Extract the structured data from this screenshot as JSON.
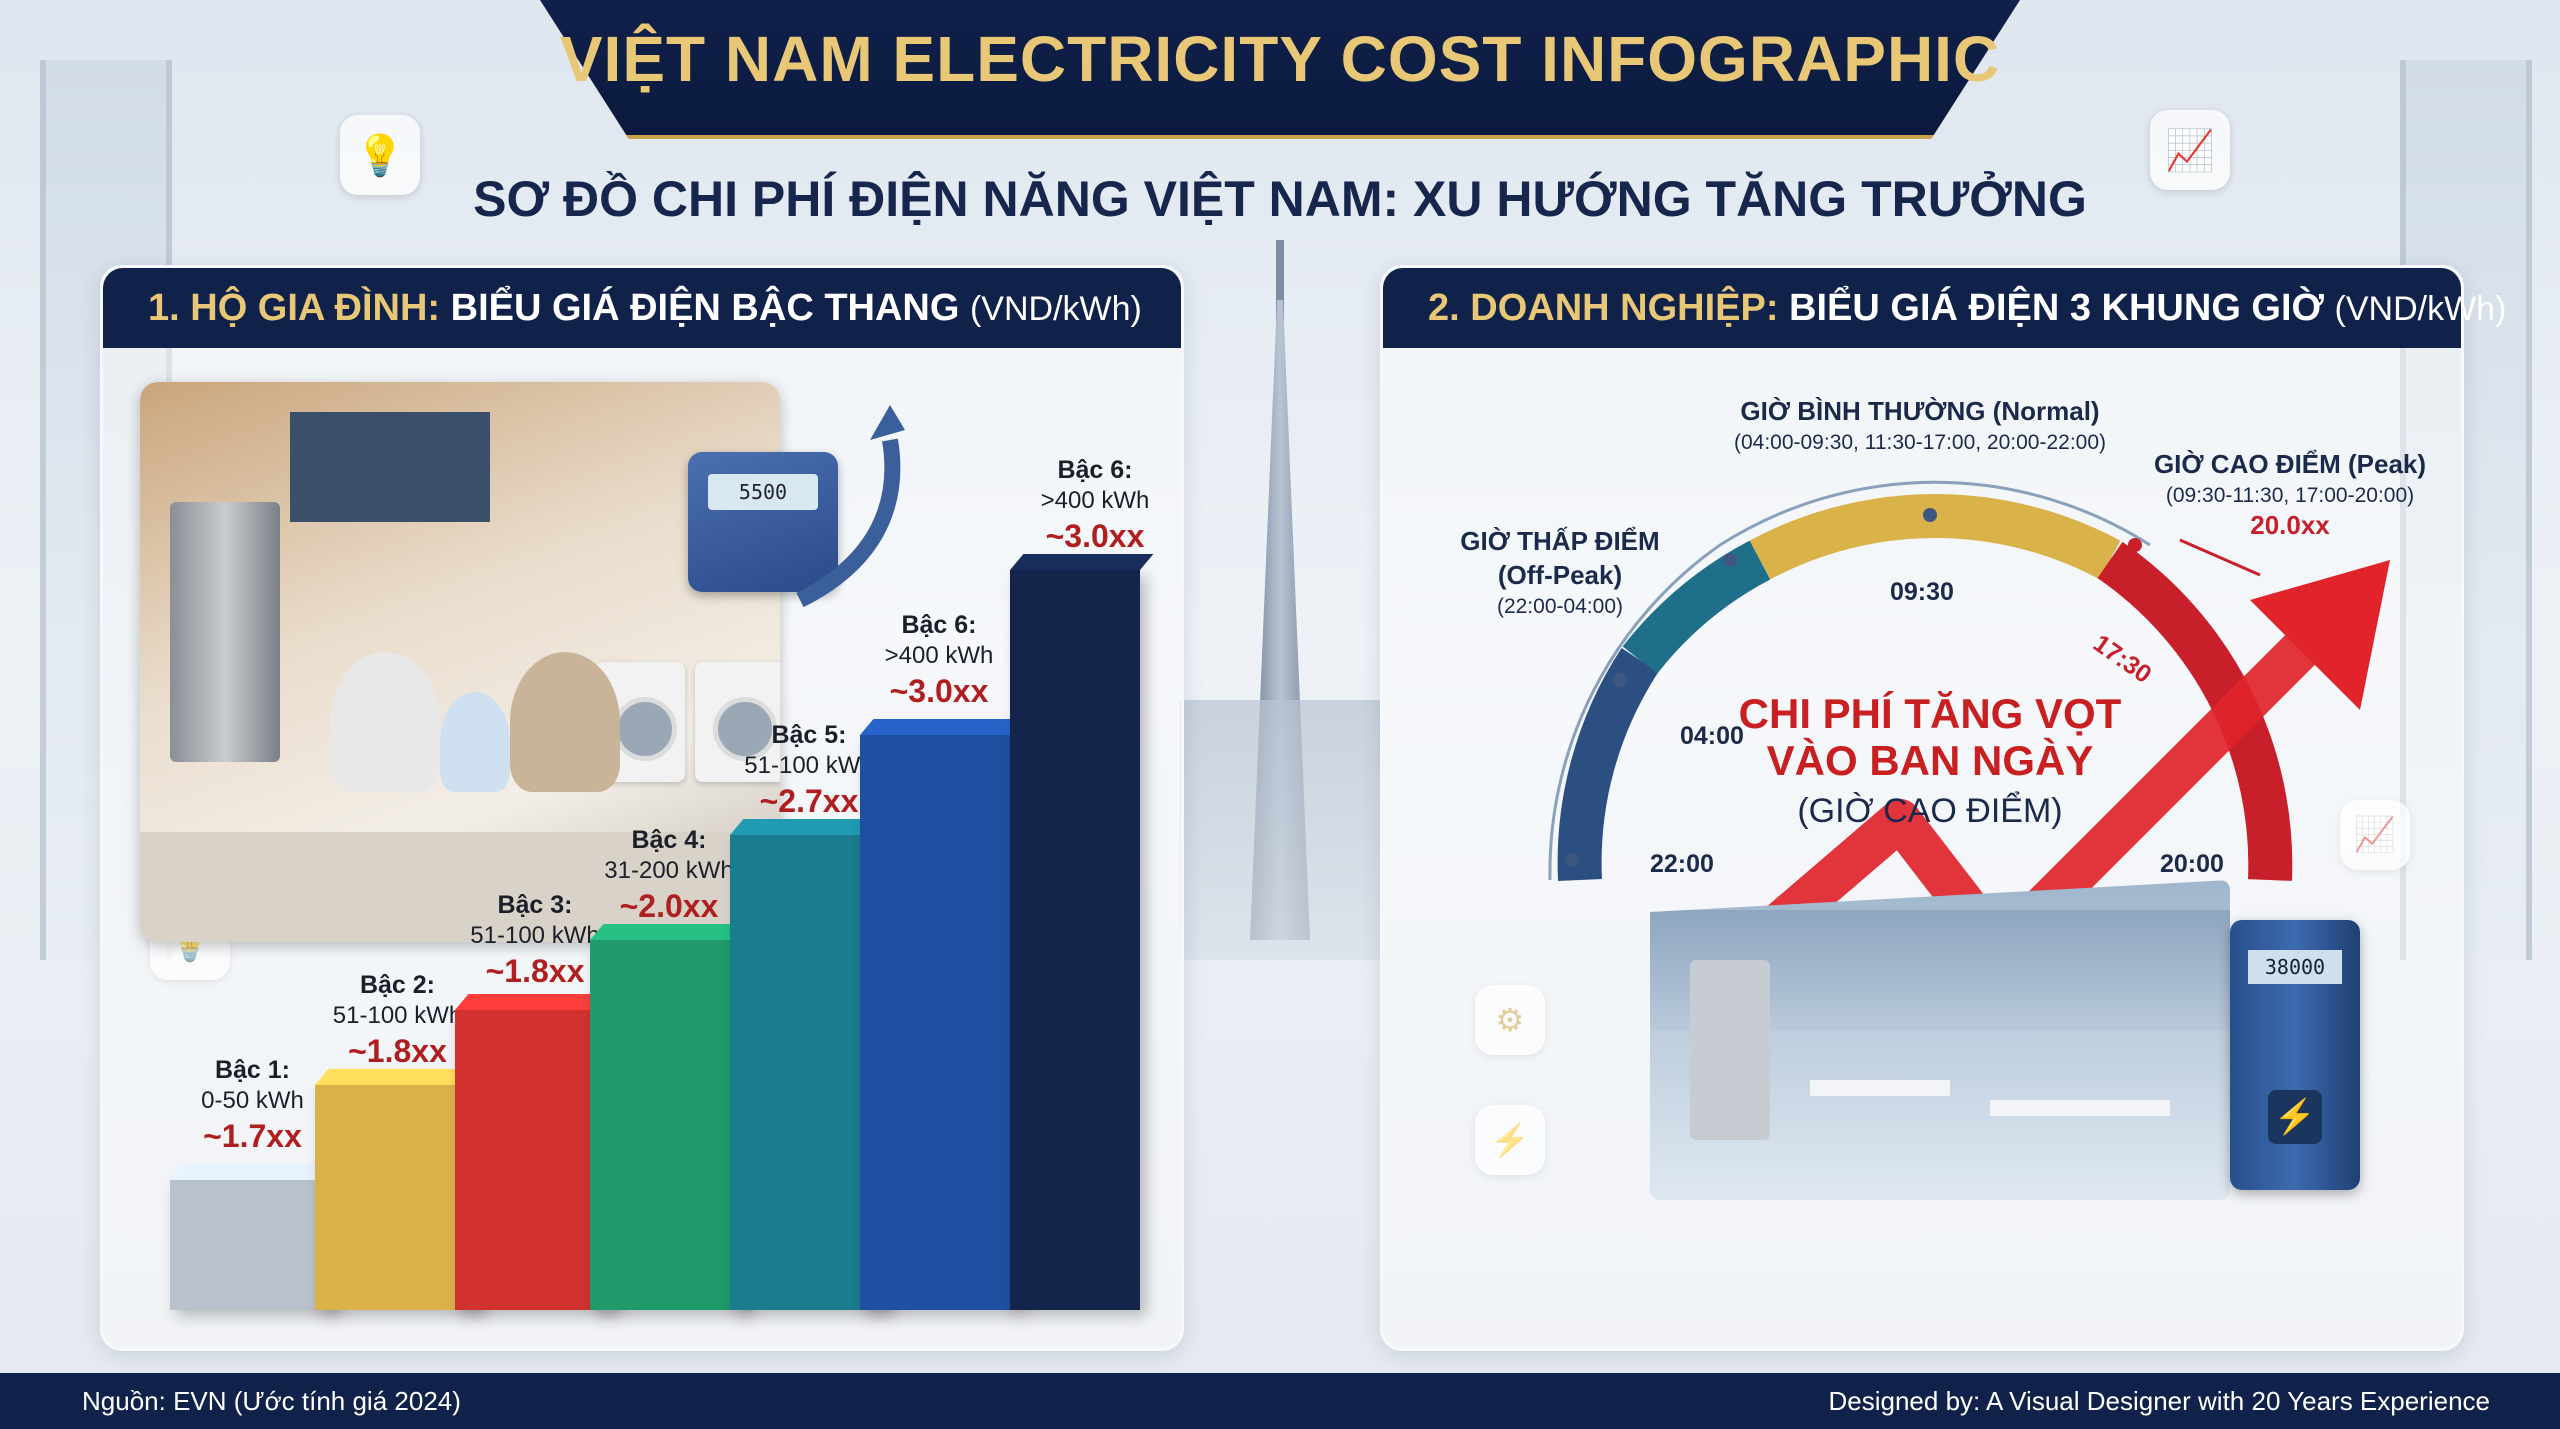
{
  "title": "VIỆT NAM ELECTRICITY COST INFOGRAPHIC",
  "subtitle": "SƠ ĐỒ CHI PHÍ ĐIỆN NĂNG VIỆT NAM: XU HƯỚNG TĂNG TRƯỞNG",
  "household": {
    "head_num": "1. HỘ GIA ĐÌNH:",
    "head_title": "BIỂU GIÁ ĐIỆN BẬC THANG",
    "head_unit": "(VND/kWh)",
    "meter_reading": "5500",
    "tiers": [
      {
        "tier": "Bậc 1:",
        "range": "0-50 kWh",
        "price": "~1.7xx",
        "color": "#b9c2cc"
      },
      {
        "tier": "Bậc 2:",
        "range": "51-100 kWh",
        "price": "~1.8xx",
        "color": "#d9b24a"
      },
      {
        "tier": "Bậc 3:",
        "range": "51-100 kWh",
        "price": "~1.8xx",
        "color": "#d1312f"
      },
      {
        "tier": "Bậc 4:",
        "range": "31-200 kWh",
        "price": "~2.0xx",
        "color": "#1f9a6a"
      },
      {
        "tier": "Bậc 5:",
        "range": "51-100 kWh",
        "price": "~2.7xx",
        "color": "#1a7c8e"
      },
      {
        "tier": "Bậc 6:",
        "range": ">400 kWh",
        "price": "~3.0xx",
        "color": "#1f4fa0"
      },
      {
        "tier": "Bậc 6:",
        "range": ">400 kWh",
        "price": "~3.0xx",
        "color": "#14244a"
      }
    ]
  },
  "business": {
    "head_num": "2. DOANH NGHIỆP:",
    "head_title": "BIỂU GIÁ ĐIỆN 3 KHUNG GIỜ",
    "head_unit": "(VND/kWh)",
    "normal_title": "GIỜ BÌNH THƯỜNG (Normal)",
    "normal_hours": "(04:00-09:30, 11:30-17:00, 20:00-22:00)",
    "peak_title": "GIỜ CAO ĐIỂM (Peak)",
    "peak_hours": "(09:30-11:30, 17:00-20:00)",
    "peak_price": "20.0xx",
    "offpeak_title1": "GIỜ THẤP ĐIỂM",
    "offpeak_title2": "(Off-Peak)",
    "offpeak_hours": "(22:00-04:00)",
    "ticks": {
      "t0930": "09:30",
      "t1730": "17:30",
      "t0400": "04:00",
      "t2200": "22:00",
      "t2000": "20:00"
    },
    "headline1": "CHI PHÍ TĂNG VỌT",
    "headline2": "VÀO BAN NGÀY",
    "headline_sub": "(GIỜ CAO ĐIỂM)",
    "cabinet_reading": "38000"
  },
  "footer": {
    "source": "Nguồn: EVN (Ước tính giá 2024)",
    "credit": "Designed by: A Visual Designer with 20 Years Experience"
  },
  "icons": [
    "lightbulb-icon",
    "chart-icon",
    "gear-icon",
    "lightning-icon"
  ]
}
